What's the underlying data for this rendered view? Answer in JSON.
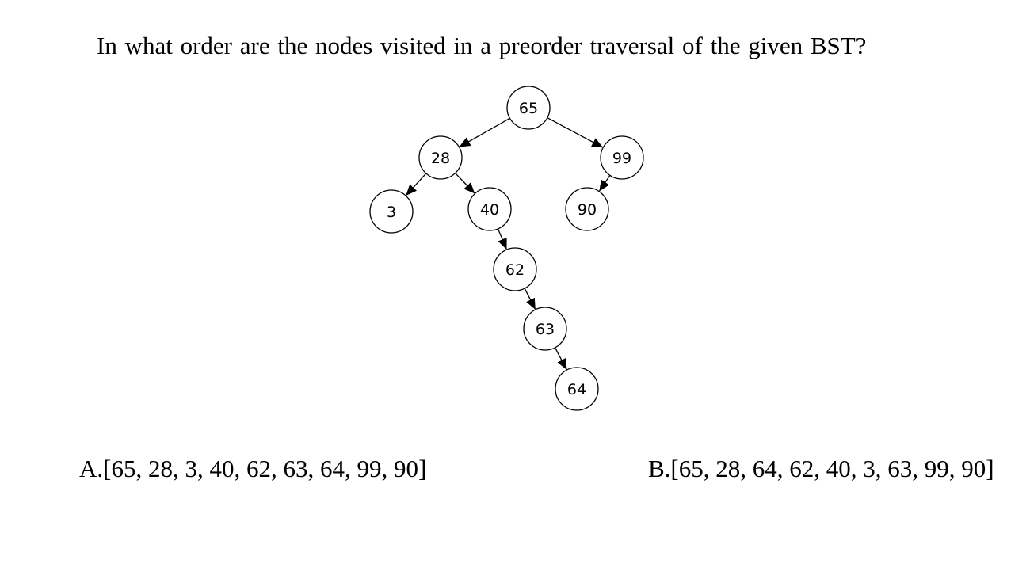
{
  "question": {
    "text": "In what order are the nodes visited in a preorder traversal of the given BST?"
  },
  "tree": {
    "nodes": [
      {
        "id": "n65",
        "label": "65"
      },
      {
        "id": "n28",
        "label": "28"
      },
      {
        "id": "n99",
        "label": "99"
      },
      {
        "id": "n3",
        "label": "3"
      },
      {
        "id": "n40",
        "label": "40"
      },
      {
        "id": "n90",
        "label": "90"
      },
      {
        "id": "n62",
        "label": "62"
      },
      {
        "id": "n63",
        "label": "63"
      },
      {
        "id": "n64",
        "label": "64"
      }
    ],
    "edges": [
      {
        "from": "n65",
        "to": "n28"
      },
      {
        "from": "n65",
        "to": "n99"
      },
      {
        "from": "n28",
        "to": "n3"
      },
      {
        "from": "n28",
        "to": "n40"
      },
      {
        "from": "n99",
        "to": "n90"
      },
      {
        "from": "n40",
        "to": "n62"
      },
      {
        "from": "n62",
        "to": "n63"
      },
      {
        "from": "n63",
        "to": "n64"
      }
    ]
  },
  "options": {
    "a": "A.[65, 28, 3, 40, 62, 63, 64, 99, 90]",
    "b": "B.[65, 28, 64, 62, 40, 3, 63, 99, 90]"
  }
}
